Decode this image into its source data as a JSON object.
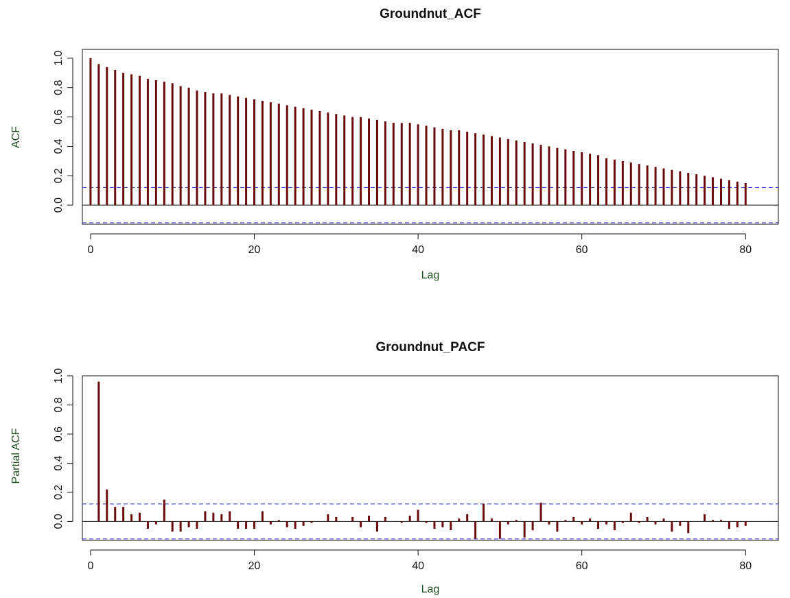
{
  "colors": {
    "bar": "#6b0a0a",
    "conf": "#2a2acc",
    "axis": "#111111",
    "label": "#1f4f1f"
  },
  "chart_data": [
    {
      "type": "bar",
      "title": "Groundnut_ACF",
      "xlabel": "Lag",
      "ylabel": "ACF",
      "xlim": [
        -1,
        84
      ],
      "ylim": [
        -0.13,
        1.06
      ],
      "xticks": [
        "0",
        "20",
        "40",
        "60",
        "80"
      ],
      "yticks": [
        "0.0",
        "0.2",
        "0.4",
        "0.6",
        "0.8",
        "1.0"
      ],
      "conf_bounds": [
        0.12,
        -0.12
      ],
      "lags": [
        0,
        1,
        2,
        3,
        4,
        5,
        6,
        7,
        8,
        9,
        10,
        11,
        12,
        13,
        14,
        15,
        16,
        17,
        18,
        19,
        20,
        21,
        22,
        23,
        24,
        25,
        26,
        27,
        28,
        29,
        30,
        31,
        32,
        33,
        34,
        35,
        36,
        37,
        38,
        39,
        40,
        41,
        42,
        43,
        44,
        45,
        46,
        47,
        48,
        49,
        50,
        51,
        52,
        53,
        54,
        55,
        56,
        57,
        58,
        59,
        60,
        61,
        62,
        63,
        64,
        65,
        66,
        67,
        68,
        69,
        70,
        71,
        72,
        73,
        74,
        75,
        76,
        77,
        78,
        79,
        80
      ],
      "values": [
        1.0,
        0.96,
        0.94,
        0.92,
        0.9,
        0.89,
        0.88,
        0.86,
        0.85,
        0.84,
        0.83,
        0.81,
        0.8,
        0.78,
        0.77,
        0.76,
        0.76,
        0.75,
        0.74,
        0.73,
        0.72,
        0.71,
        0.7,
        0.69,
        0.68,
        0.67,
        0.66,
        0.65,
        0.64,
        0.63,
        0.62,
        0.61,
        0.6,
        0.6,
        0.59,
        0.58,
        0.57,
        0.56,
        0.56,
        0.56,
        0.55,
        0.54,
        0.53,
        0.52,
        0.51,
        0.51,
        0.5,
        0.49,
        0.48,
        0.47,
        0.46,
        0.45,
        0.44,
        0.43,
        0.42,
        0.41,
        0.4,
        0.39,
        0.38,
        0.37,
        0.36,
        0.35,
        0.34,
        0.32,
        0.31,
        0.3,
        0.29,
        0.28,
        0.27,
        0.26,
        0.25,
        0.24,
        0.23,
        0.22,
        0.21,
        0.2,
        0.19,
        0.18,
        0.17,
        0.16,
        0.15
      ]
    },
    {
      "type": "bar",
      "title": "Groundnut_PACF",
      "xlabel": "Lag",
      "ylabel": "Partial ACF",
      "xlim": [
        -1,
        84
      ],
      "ylim": [
        -0.13,
        1.0
      ],
      "xticks": [
        "0",
        "20",
        "40",
        "60",
        "80"
      ],
      "yticks": [
        "0.0",
        "0.2",
        "0.4",
        "0.6",
        "0.8",
        "1.0"
      ],
      "conf_bounds": [
        0.12,
        -0.12
      ],
      "lags": [
        1,
        2,
        3,
        4,
        5,
        6,
        7,
        8,
        9,
        10,
        11,
        12,
        13,
        14,
        15,
        16,
        17,
        18,
        19,
        20,
        21,
        22,
        23,
        24,
        25,
        26,
        27,
        28,
        29,
        30,
        31,
        32,
        33,
        34,
        35,
        36,
        37,
        38,
        39,
        40,
        41,
        42,
        43,
        44,
        45,
        46,
        47,
        48,
        49,
        50,
        51,
        52,
        53,
        54,
        55,
        56,
        57,
        58,
        59,
        60,
        61,
        62,
        63,
        64,
        65,
        66,
        67,
        68,
        69,
        70,
        71,
        72,
        73,
        74,
        75,
        76,
        77,
        78,
        79,
        80
      ],
      "values": [
        0.96,
        0.22,
        0.1,
        0.1,
        0.05,
        0.06,
        -0.05,
        -0.02,
        0.15,
        -0.07,
        -0.07,
        -0.04,
        -0.05,
        0.07,
        0.06,
        0.05,
        0.07,
        -0.05,
        -0.05,
        -0.05,
        0.07,
        -0.02,
        0.01,
        -0.04,
        -0.05,
        -0.03,
        -0.01,
        0.0,
        0.05,
        0.03,
        0.0,
        0.03,
        -0.04,
        0.04,
        -0.07,
        0.03,
        0.0,
        -0.01,
        0.04,
        0.08,
        -0.01,
        -0.05,
        -0.04,
        -0.06,
        0.02,
        0.05,
        -0.12,
        0.12,
        0.02,
        -0.12,
        -0.02,
        0.01,
        -0.11,
        -0.06,
        0.13,
        -0.02,
        -0.07,
        0.01,
        0.03,
        -0.02,
        0.02,
        -0.05,
        -0.02,
        -0.06,
        -0.01,
        0.06,
        -0.01,
        0.03,
        -0.02,
        0.02,
        -0.07,
        -0.03,
        -0.08,
        0.0,
        0.05,
        0.01,
        0.01,
        -0.05,
        -0.04,
        -0.03
      ]
    }
  ]
}
